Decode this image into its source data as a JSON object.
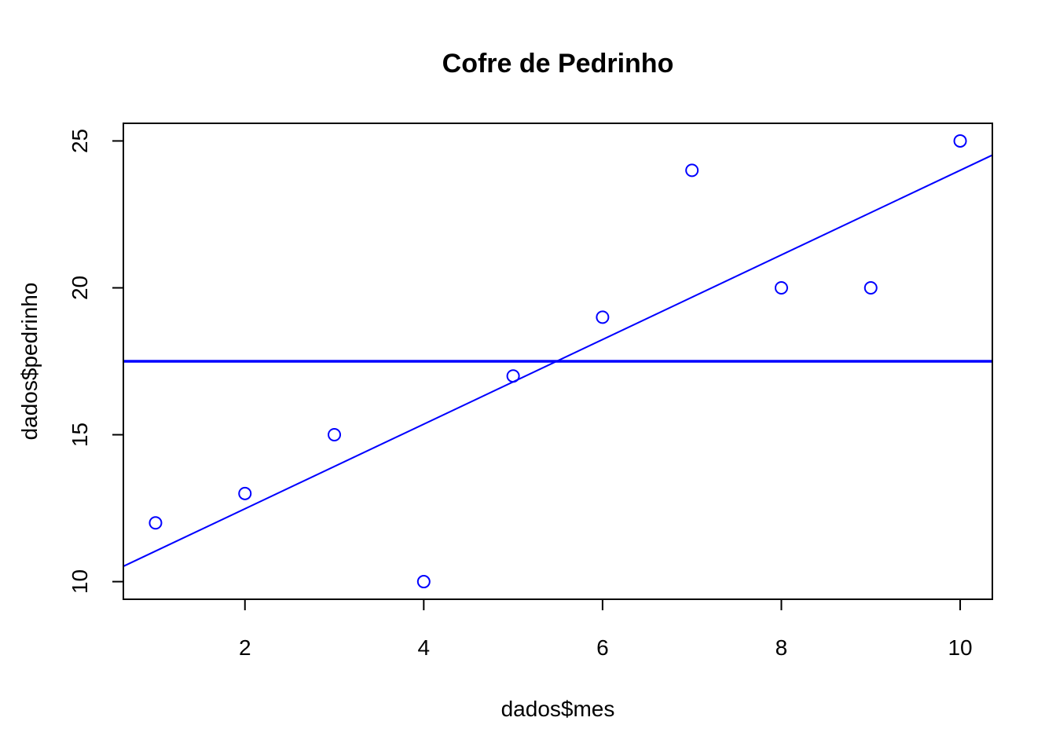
{
  "chart_data": {
    "type": "scatter",
    "title": "Cofre de Pedrinho",
    "xlabel": "dados$mes",
    "ylabel": "dados$pedrinho",
    "xlim": [
      0.64,
      10.36
    ],
    "ylim": [
      9.4,
      25.6
    ],
    "xticks": [
      2,
      4,
      6,
      8,
      10
    ],
    "yticks": [
      10,
      15,
      20,
      25
    ],
    "grid": false,
    "legend": "none",
    "series": [
      {
        "marker": "open-circle",
        "color": "#0000ff",
        "x": [
          1,
          2,
          3,
          4,
          5,
          6,
          7,
          8,
          9,
          10
        ],
        "y": [
          12,
          13,
          15,
          10,
          17,
          19,
          24,
          20,
          20,
          25
        ]
      }
    ],
    "lines": [
      {
        "kind": "regression",
        "intercept": 9.6,
        "slope": 1.44,
        "color": "#0000ff",
        "weight": "thin"
      },
      {
        "kind": "horizontal",
        "y": 17.5,
        "color": "#0000ff",
        "weight": "thick"
      }
    ]
  }
}
